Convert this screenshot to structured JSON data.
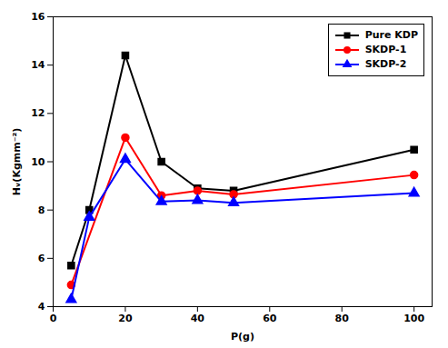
{
  "chart_data": {
    "type": "line",
    "xlabel": "P(g)",
    "ylabel": "Hᵥ(Kgmm⁻²)",
    "series": [
      {
        "name": "Pure KDP",
        "color": "#000000",
        "marker": "square",
        "x": [
          5,
          10,
          20,
          30,
          40,
          50,
          100
        ],
        "values": [
          5.7,
          8.0,
          14.4,
          10.0,
          8.9,
          8.8,
          10.5
        ]
      },
      {
        "name": "SKDP-1",
        "color": "#ff0000",
        "marker": "circle",
        "x": [
          5,
          20,
          30,
          40,
          50,
          100
        ],
        "values": [
          4.9,
          11.0,
          8.6,
          8.8,
          8.65,
          9.45
        ]
      },
      {
        "name": "SKDP-2",
        "color": "#0000ff",
        "marker": "triangle",
        "x": [
          5,
          10,
          20,
          30,
          40,
          50,
          100
        ],
        "values": [
          4.3,
          7.7,
          10.1,
          8.35,
          8.4,
          8.3,
          8.7
        ]
      }
    ],
    "xlim": [
      0,
      105
    ],
    "ylim": [
      4,
      16
    ],
    "xticks": [
      0,
      20,
      40,
      60,
      80,
      100
    ],
    "yticks": [
      4,
      6,
      8,
      10,
      12,
      14,
      16
    ],
    "grid": false,
    "legend": "upper right"
  }
}
